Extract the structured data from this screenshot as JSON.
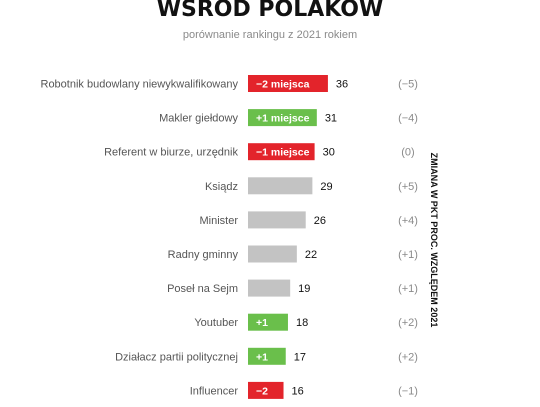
{
  "chart_data": {
    "type": "bar",
    "title": "WŚRÓD POLAKÓW",
    "subtitle": "porównanie rankingu z 2021 rokiem",
    "side_label": "ZMIANA W PKT PROC. WZGLĘDEM 2021",
    "categories": [
      "Robotnik budowlany niewykwalifikowany",
      "Makler giełdowy",
      "Referent w biurze, urzędnik",
      "Ksiądz",
      "Minister",
      "Radny gminny",
      "Poseł na Sejm",
      "Youtuber",
      "Działacz partii politycznej",
      "Influencer"
    ],
    "values": [
      36,
      31,
      30,
      29,
      26,
      22,
      19,
      18,
      17,
      16
    ],
    "bar_labels": [
      "−2 miejsca",
      "+1 miejsce",
      "−1 miejsce",
      "",
      "",
      "",
      "",
      "+1",
      "+1",
      "−2"
    ],
    "bar_status": [
      "down",
      "up",
      "down",
      "neutral",
      "neutral",
      "neutral",
      "neutral",
      "up",
      "up",
      "down"
    ],
    "changes": [
      "(−5)",
      "(−4)",
      "(0)",
      "(+5)",
      "(+4)",
      "(+1)",
      "(+1)",
      "(+2)",
      "(+2)",
      "(−1)"
    ],
    "colors": {
      "up": "#6abf4b",
      "down": "#e3242b",
      "neutral": "#c3c3c3"
    }
  }
}
